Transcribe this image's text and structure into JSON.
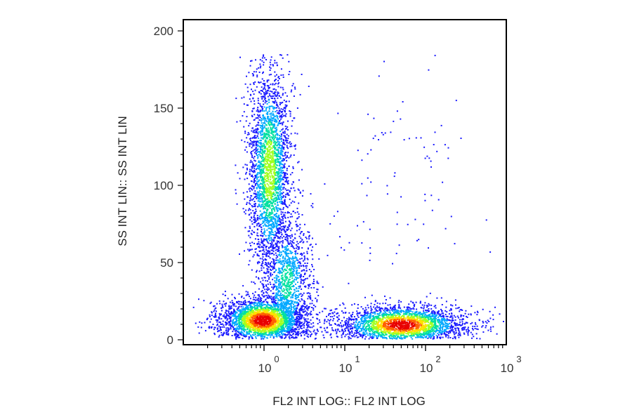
{
  "chart_data": {
    "type": "scatter",
    "style": "flow-cytometry density dot plot",
    "title": "",
    "xlabel": "FL2 INT LOG:: FL2 INT LOG",
    "ylabel": "SS INT LIN:: SS INT LIN",
    "x_scale": "log",
    "xlim": [
      0.1,
      1000
    ],
    "ylim": [
      0,
      200
    ],
    "x_ticks": [
      {
        "value": 1,
        "base": "10",
        "exp": "0"
      },
      {
        "value": 10,
        "base": "10",
        "exp": "1"
      },
      {
        "value": 100,
        "base": "10",
        "exp": "2"
      },
      {
        "value": 1000,
        "base": "10",
        "exp": "3"
      }
    ],
    "y_ticks": [
      {
        "value": 0,
        "label": "0"
      },
      {
        "value": 50,
        "label": "50"
      },
      {
        "value": 100,
        "label": "100"
      },
      {
        "value": 150,
        "label": "150"
      },
      {
        "value": 200,
        "label": "200"
      }
    ],
    "grid": false,
    "legend": "none",
    "density_colormap": [
      "#1a1aff",
      "#00a8ff",
      "#00e0a0",
      "#a0ff20",
      "#ffe000",
      "#ff6000",
      "#e80000"
    ],
    "populations": [
      {
        "center_x": 0.95,
        "center_y": 13,
        "spread_log_x": 0.2,
        "spread_y": 6,
        "peak_density": 1.0
      },
      {
        "center_x": 1.15,
        "center_y": 110,
        "spread_log_x": 0.1,
        "spread_y": 28,
        "peak_density": 0.55
      },
      {
        "center_x": 1.9,
        "center_y": 38,
        "spread_log_x": 0.12,
        "spread_y": 18,
        "peak_density": 0.35
      },
      {
        "center_x": 50,
        "center_y": 10,
        "spread_log_x": 0.3,
        "spread_y": 5,
        "peak_density": 1.0
      },
      {
        "center_x": 40,
        "center_y": 110,
        "spread_log_x": 0.4,
        "spread_y": 40,
        "peak_density": 0.05
      }
    ]
  }
}
